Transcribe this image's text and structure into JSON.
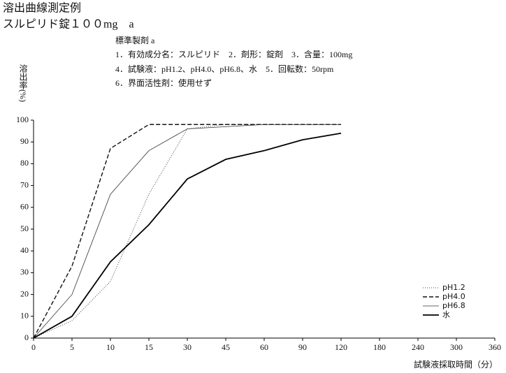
{
  "chart_data": {
    "type": "line",
    "title": "溶出曲線測定例",
    "subtitle": "スルピリド錠１００mg　a",
    "annotations": [
      "標準製剤 a",
      "1．有効成分名：スルピリド　2．剤形：錠剤　3．含量：100mg",
      "4．試験液：pH1.2、pH4.0、pH6.8、水　5．回転数：50rpm",
      "6．界面活性剤：使用せず"
    ],
    "y_label": "溶出率(%)",
    "x_label": "試験液採取時間（分）",
    "categories": [
      "0",
      "5",
      "10",
      "15",
      "30",
      "45",
      "60",
      "90",
      "120",
      "180",
      "240",
      "300",
      "360"
    ],
    "ylim": [
      0,
      100
    ],
    "yticks": [
      0,
      10,
      20,
      30,
      40,
      50,
      60,
      70,
      80,
      90,
      100
    ],
    "legend": "lower right",
    "series": [
      {
        "name": "pH1.2",
        "color": "#444",
        "line_style": "dotted",
        "values": [
          0,
          8,
          26,
          66,
          96,
          98,
          98,
          98,
          98,
          null,
          null,
          null,
          null
        ]
      },
      {
        "name": "pH4.0",
        "color": "#111",
        "line_style": "dashed",
        "values": [
          0,
          33,
          87,
          98,
          98,
          98,
          98,
          98,
          98,
          null,
          null,
          null,
          null
        ]
      },
      {
        "name": "pH6.8",
        "color": "#333",
        "line_style": "thin",
        "values": [
          0,
          20,
          66,
          86,
          96,
          97,
          98,
          98,
          98,
          null,
          null,
          null,
          null
        ]
      },
      {
        "name": "水",
        "color": "#000",
        "line_style": "thick",
        "values": [
          0,
          10,
          35,
          52,
          73,
          82,
          86,
          91,
          94,
          null,
          null,
          null,
          null
        ]
      }
    ]
  }
}
